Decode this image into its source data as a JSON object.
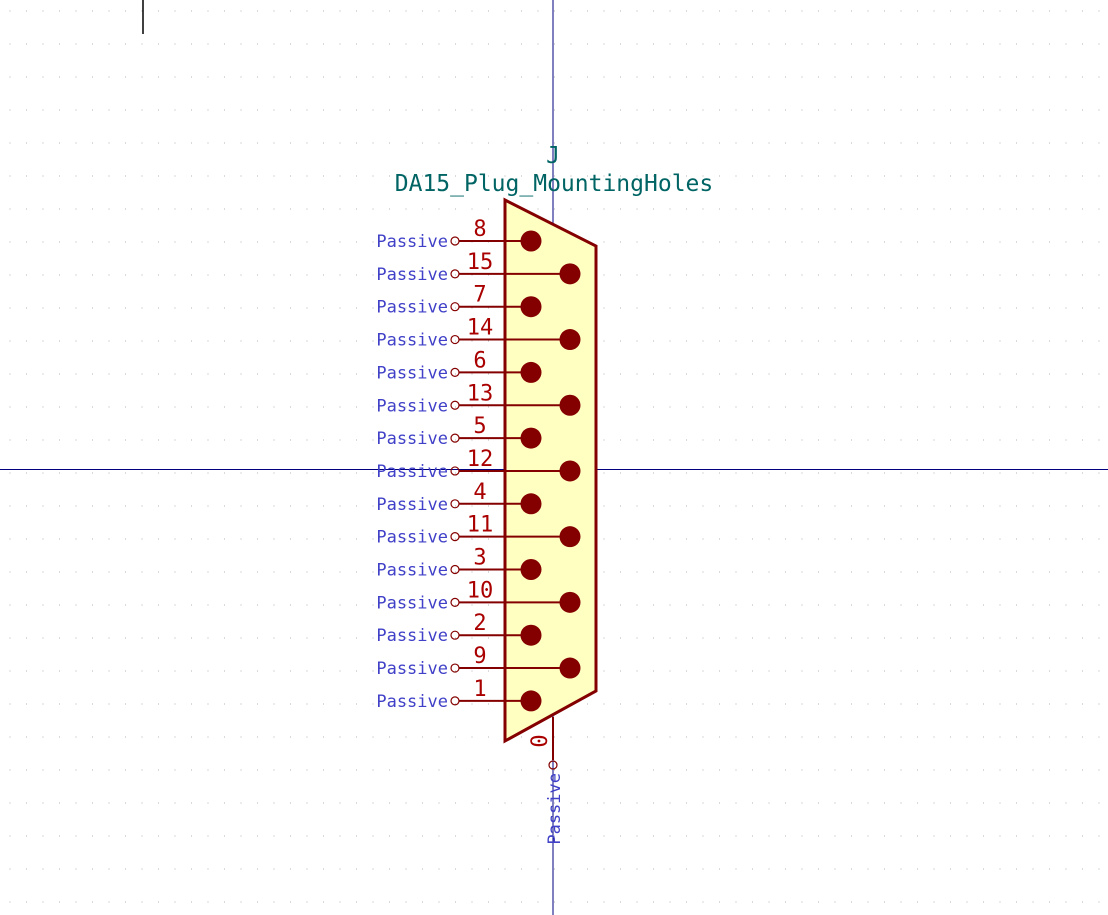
{
  "symbol": {
    "reference": "J",
    "value": "DA15_Plug_MountingHoles"
  },
  "pins": [
    {
      "number": "8",
      "type": "Passive"
    },
    {
      "number": "15",
      "type": "Passive"
    },
    {
      "number": "7",
      "type": "Passive"
    },
    {
      "number": "14",
      "type": "Passive"
    },
    {
      "number": "6",
      "type": "Passive"
    },
    {
      "number": "13",
      "type": "Passive"
    },
    {
      "number": "5",
      "type": "Passive"
    },
    {
      "number": "12",
      "type": "Passive"
    },
    {
      "number": "4",
      "type": "Passive"
    },
    {
      "number": "11",
      "type": "Passive"
    },
    {
      "number": "3",
      "type": "Passive"
    },
    {
      "number": "10",
      "type": "Passive"
    },
    {
      "number": "2",
      "type": "Passive"
    },
    {
      "number": "9",
      "type": "Passive"
    },
    {
      "number": "1",
      "type": "Passive"
    }
  ],
  "bottom_pin": {
    "number": "0",
    "type": "Passive"
  },
  "colors": {
    "body_fill": "#ffffc2",
    "body_stroke": "#840000",
    "pin_number": "#a90000",
    "pin_type": "#4040c8",
    "field_text": "#006464",
    "axis": "#000080",
    "grid_dot": "#b4b4b4"
  }
}
